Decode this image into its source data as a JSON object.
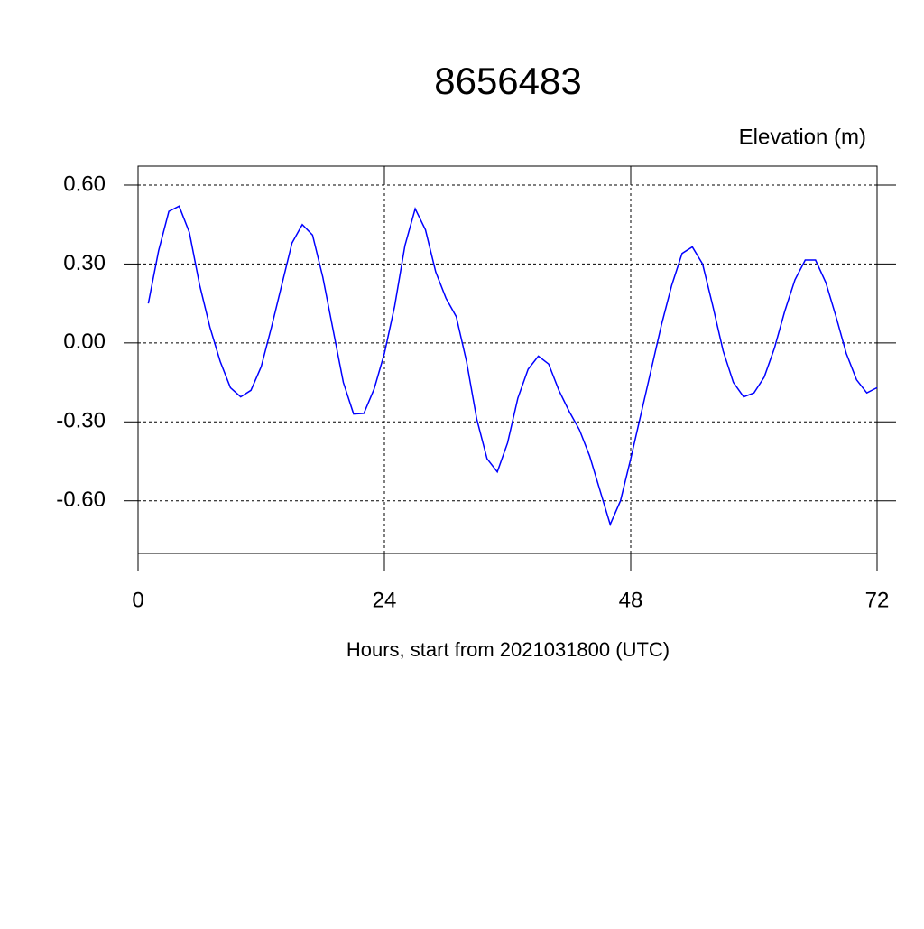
{
  "chart_data": {
    "type": "line",
    "title": "8656483",
    "y_label": "Elevation (m)",
    "x_label": "Hours, start from 2021031800 (UTC)",
    "x": [
      1,
      2,
      3,
      4,
      5,
      6,
      7,
      8,
      9,
      10,
      11,
      12,
      13,
      14,
      15,
      16,
      17,
      18,
      19,
      20,
      21,
      22,
      23,
      24,
      25,
      26,
      27,
      28,
      29,
      30,
      31,
      32,
      33,
      34,
      35,
      36,
      37,
      38,
      39,
      40,
      41,
      42,
      43,
      44,
      45,
      46,
      47,
      48,
      49,
      50,
      51,
      52,
      53,
      54,
      55,
      56,
      57,
      58,
      59,
      60,
      61,
      62,
      63,
      64,
      65,
      66,
      67,
      68,
      69,
      70,
      71,
      72
    ],
    "series": [
      {
        "color": "#0000ff",
        "values": [
          0.15,
          0.35,
          0.5,
          0.52,
          0.42,
          0.22,
          0.06,
          -0.07,
          -0.17,
          -0.205,
          -0.18,
          -0.09,
          0.06,
          0.22,
          0.38,
          0.45,
          0.41,
          0.25,
          0.05,
          -0.15,
          -0.27,
          -0.268,
          -0.175,
          -0.04,
          0.14,
          0.37,
          0.51,
          0.43,
          0.27,
          0.17,
          0.1,
          -0.07,
          -0.29,
          -0.44,
          -0.49,
          -0.38,
          -0.21,
          -0.1,
          -0.05,
          -0.08,
          -0.18,
          -0.26,
          -0.33,
          -0.43,
          -0.56,
          -0.69,
          -0.6,
          -0.44,
          -0.27,
          -0.1,
          0.07,
          0.22,
          0.34,
          0.365,
          0.3,
          0.14,
          -0.03,
          -0.15,
          -0.205,
          -0.19,
          -0.13,
          -0.02,
          0.12,
          0.24,
          0.315,
          0.315,
          0.23,
          0.1,
          -0.04,
          -0.14,
          -0.19,
          -0.17
        ]
      }
    ],
    "xlim": [
      0,
      72
    ],
    "xticks": [
      0,
      24,
      48,
      72
    ],
    "ylim": [
      -0.8,
      0.672
    ],
    "yticks": [
      {
        "value": 0.6,
        "label": "0.60"
      },
      {
        "value": 0.3,
        "label": "0.30"
      },
      {
        "value": 0,
        "label": "0.00"
      },
      {
        "value": -0.3,
        "label": "-0.30"
      },
      {
        "value": -0.6,
        "label": "-0.60"
      }
    ],
    "grid": true
  }
}
